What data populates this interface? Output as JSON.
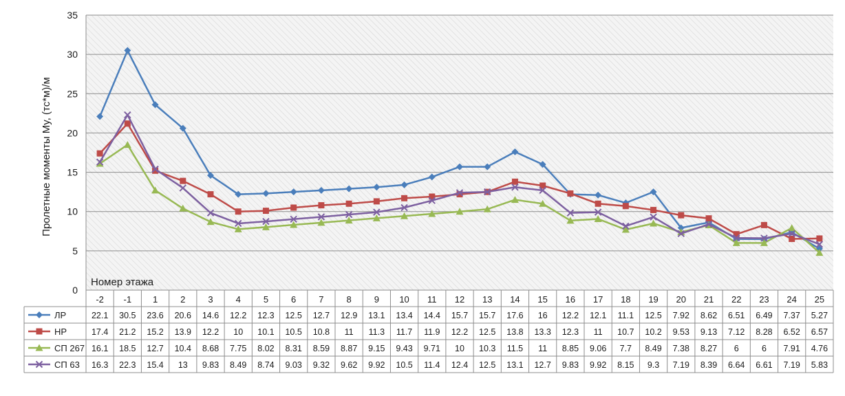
{
  "chart_data": {
    "type": "line",
    "title": "",
    "ylabel": "Пролетные моменты My, (тс*м)/м",
    "xlabel": "Номер этажа",
    "ylim": [
      0,
      35
    ],
    "yticks": [
      0,
      5,
      10,
      15,
      20,
      25,
      30,
      35
    ],
    "grid": "horizontal",
    "legend": "data-table",
    "categories": [
      "-2",
      "-1",
      "1",
      "2",
      "3",
      "4",
      "5",
      "6",
      "7",
      "8",
      "9",
      "10",
      "11",
      "12",
      "13",
      "14",
      "15",
      "16",
      "17",
      "18",
      "19",
      "20",
      "21",
      "22",
      "23",
      "24",
      "25"
    ],
    "series": [
      {
        "name": "ЛР",
        "color": "#4a7ebb",
        "marker": "diamond",
        "values": [
          22.1,
          30.5,
          23.6,
          20.6,
          14.6,
          12.2,
          12.3,
          12.5,
          12.7,
          12.9,
          13.1,
          13.4,
          14.4,
          15.7,
          15.7,
          17.6,
          16,
          12.2,
          12.1,
          11.1,
          12.5,
          7.92,
          8.62,
          6.51,
          6.49,
          7.37,
          5.27
        ]
      },
      {
        "name": "НР",
        "color": "#be4b48",
        "marker": "square",
        "values": [
          17.4,
          21.2,
          15.2,
          13.9,
          12.2,
          10,
          10.1,
          10.5,
          10.8,
          11,
          11.3,
          11.7,
          11.9,
          12.2,
          12.5,
          13.8,
          13.3,
          12.3,
          11,
          10.7,
          10.2,
          9.53,
          9.13,
          7.12,
          8.28,
          6.52,
          6.57
        ]
      },
      {
        "name": "СП 267",
        "color": "#98b954",
        "marker": "triangle",
        "values": [
          16.1,
          18.5,
          12.7,
          10.4,
          8.68,
          7.75,
          8.02,
          8.31,
          8.59,
          8.87,
          9.15,
          9.43,
          9.71,
          10,
          10.3,
          11.5,
          11,
          8.85,
          9.06,
          7.7,
          8.49,
          7.38,
          8.27,
          6,
          6,
          7.91,
          4.76
        ]
      },
      {
        "name": "СП 63",
        "color": "#7d60a0",
        "marker": "x",
        "values": [
          16.3,
          22.3,
          15.4,
          13,
          9.83,
          8.49,
          8.74,
          9.03,
          9.32,
          9.62,
          9.92,
          10.5,
          11.4,
          12.4,
          12.5,
          13.1,
          12.7,
          9.83,
          9.92,
          8.15,
          9.3,
          7.19,
          8.39,
          6.64,
          6.61,
          7.19,
          5.83
        ]
      }
    ]
  }
}
